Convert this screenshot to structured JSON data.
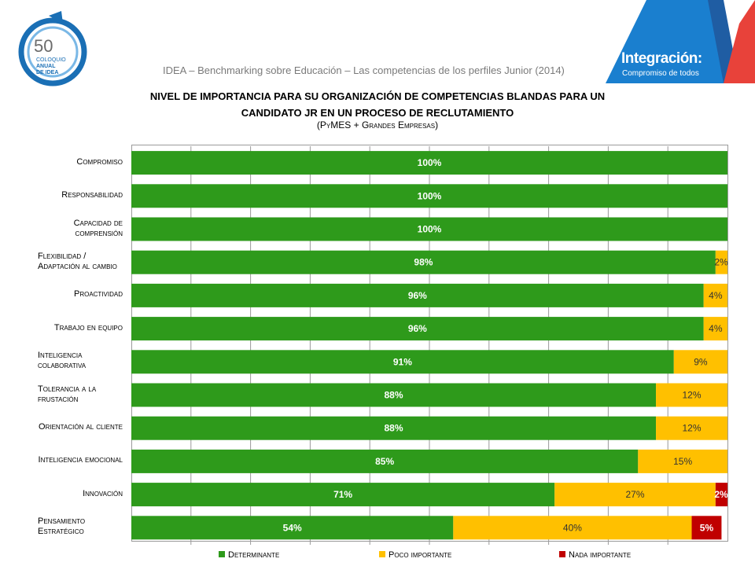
{
  "header": {
    "logo_number": "50",
    "logo_line1": "COLOQUIO",
    "logo_line2": "ANUAL",
    "logo_line3": "DE IDEA",
    "subtitle": "IDEA – Benchmarking sobre Educación – Las competencias de los perfiles Junior (2014)",
    "banner_title": "Integración:",
    "banner_subtitle": "Compromiso de todos"
  },
  "colors": {
    "determinante": "#2e9a1b",
    "poco": "#ffc000",
    "nada": "#c00000",
    "grid": "#9a9a9a",
    "banner_blue": "#1a7fcf",
    "banner_red": "#e8423a"
  },
  "chart_data": {
    "type": "bar",
    "orientation": "horizontal",
    "stacked": true,
    "title": "NIVEL DE IMPORTANCIA PARA SU ORGANIZACIÓN DE COMPETENCIAS BLANDAS PARA UN CANDIDATO JR EN UN PROCESO DE RECLUTAMIENTO",
    "title_line1": "NIVEL DE IMPORTANCIA PARA SU ORGANIZACIÓN DE COMPETENCIAS BLANDAS PARA UN",
    "title_line2": "CANDIDATO JR EN UN PROCESO DE RECLUTAMIENTO",
    "subtitle": "(PyMES + Grandes Empresas)",
    "categories": [
      "Compromiso",
      "Responsabilidad",
      "Capacidad de comprensión",
      "Flexibilidad / Adaptación al cambio",
      "Proactividad",
      "Trabajo en equipo",
      "Inteligencia colaborativa",
      "Tolerancia a la frustación",
      "Orientación al cliente",
      "Inteligencia emocional",
      "Innovación",
      "Pensamiento Estratégico"
    ],
    "category_lines": [
      [
        "Compromiso"
      ],
      [
        "Responsabilidad"
      ],
      [
        "Capacidad de",
        "comprensión"
      ],
      [
        "Flexibilidad /",
        "Adaptación al cambio"
      ],
      [
        "Proactividad"
      ],
      [
        "Trabajo en equipo"
      ],
      [
        "Inteligencia",
        "colaborativa"
      ],
      [
        "Tolerancia a la",
        "frustación"
      ],
      [
        "Orientación al cliente"
      ],
      [
        "Inteligencia emocional"
      ],
      [
        "Innovación"
      ],
      [
        "Pensamiento",
        "Estratégico"
      ]
    ],
    "series": [
      {
        "name": "Determinante",
        "values": [
          100,
          100,
          100,
          98,
          96,
          96,
          91,
          88,
          88,
          85,
          71,
          54
        ]
      },
      {
        "name": "Poco importante",
        "values": [
          0,
          0,
          0,
          2,
          4,
          4,
          9,
          12,
          12,
          15,
          27,
          40
        ]
      },
      {
        "name": "Nada importante",
        "values": [
          0,
          0,
          0,
          0,
          0,
          0,
          0,
          0,
          0,
          0,
          2,
          5
        ]
      }
    ],
    "xlim": [
      0,
      100
    ],
    "grid": true,
    "legend_position": "bottom",
    "value_suffix": "%"
  }
}
